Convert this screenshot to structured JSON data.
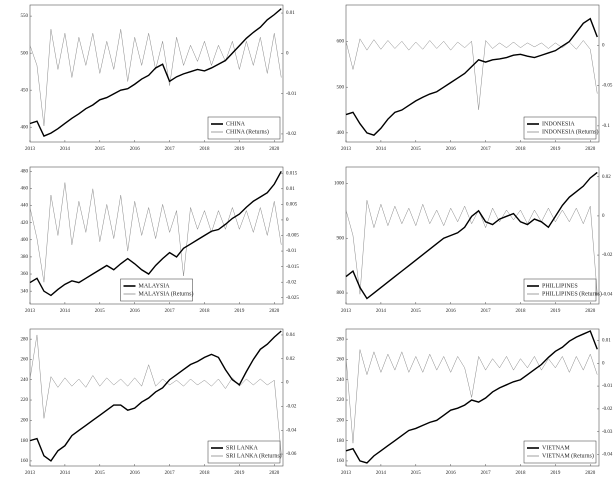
{
  "chart_data": [
    {
      "type": "line",
      "x": [
        2013,
        2013.2,
        2013.4,
        2013.6,
        2013.8,
        2014,
        2014.2,
        2014.4,
        2014.6,
        2014.8,
        2015,
        2015.2,
        2015.4,
        2015.6,
        2015.8,
        2016,
        2016.2,
        2016.4,
        2016.6,
        2016.8,
        2017,
        2017.2,
        2017.4,
        2017.6,
        2017.8,
        2018,
        2018.2,
        2018.4,
        2018.6,
        2018.8,
        2019,
        2019.2,
        2019.4,
        2019.6,
        2019.8,
        2020,
        2020.2
      ],
      "xlim": [
        2013,
        2020.25
      ],
      "xticks": [
        2013,
        2014,
        2015,
        2016,
        2017,
        2018,
        2019,
        2020
      ],
      "ylim": [
        380,
        565
      ],
      "yticks": [
        400,
        450,
        500,
        550
      ],
      "y2lim": [
        -0.022,
        0.012
      ],
      "y2ticks": [
        -0.02,
        -0.01,
        0,
        0.01
      ],
      "legend": "lower right",
      "series": [
        {
          "name": "CHINA",
          "color": "#000000",
          "values": [
            405,
            408,
            388,
            392,
            398,
            405,
            412,
            418,
            425,
            430,
            437,
            440,
            445,
            450,
            452,
            458,
            465,
            470,
            480,
            485,
            462,
            468,
            472,
            475,
            478,
            476,
            480,
            485,
            490,
            500,
            510,
            520,
            528,
            535,
            545,
            552,
            560
          ]
        },
        {
          "name": "CHINA (Returns)",
          "color": "#8a8a8a",
          "axis": "y2",
          "values": [
            0.002,
            -0.003,
            -0.018,
            0.006,
            -0.004,
            0.005,
            -0.006,
            0.004,
            -0.003,
            0.005,
            -0.005,
            0.003,
            -0.004,
            0.006,
            -0.007,
            0.004,
            -0.003,
            0.005,
            -0.004,
            0.003,
            -0.008,
            0.004,
            -0.003,
            0.002,
            -0.002,
            0.003,
            -0.003,
            0.002,
            -0.002,
            0.003,
            -0.004,
            0.003,
            -0.003,
            0.004,
            -0.005,
            0.005,
            -0.006
          ]
        }
      ]
    },
    {
      "type": "line",
      "x": [
        2013,
        2013.2,
        2013.4,
        2013.6,
        2013.8,
        2014,
        2014.2,
        2014.4,
        2014.6,
        2014.8,
        2015,
        2015.2,
        2015.4,
        2015.6,
        2015.8,
        2016,
        2016.2,
        2016.4,
        2016.6,
        2016.8,
        2017,
        2017.2,
        2017.4,
        2017.6,
        2017.8,
        2018,
        2018.2,
        2018.4,
        2018.6,
        2018.8,
        2019,
        2019.2,
        2019.4,
        2019.6,
        2019.8,
        2020,
        2020.2
      ],
      "xlim": [
        2013,
        2020.25
      ],
      "xticks": [
        2013,
        2014,
        2015,
        2016,
        2017,
        2018,
        2019,
        2020
      ],
      "ylim": [
        380,
        680
      ],
      "yticks": [
        400,
        500,
        600
      ],
      "y2lim": [
        -0.12,
        0.05
      ],
      "y2ticks": [
        -0.1,
        -0.05,
        0
      ],
      "legend": "lower right",
      "series": [
        {
          "name": "INDONESIA",
          "color": "#000000",
          "values": [
            440,
            445,
            420,
            400,
            395,
            410,
            430,
            445,
            450,
            460,
            470,
            478,
            485,
            490,
            500,
            510,
            520,
            530,
            545,
            560,
            555,
            560,
            562,
            565,
            570,
            572,
            568,
            565,
            570,
            575,
            580,
            590,
            600,
            620,
            640,
            650,
            610
          ]
        },
        {
          "name": "INDONESIA (Returns)",
          "color": "#8a8a8a",
          "axis": "y2",
          "values": [
            0.005,
            -0.03,
            0.008,
            -0.006,
            0.007,
            -0.005,
            0.006,
            -0.004,
            0.005,
            -0.006,
            0.004,
            -0.005,
            0.006,
            -0.004,
            0.005,
            -0.006,
            0.004,
            -0.003,
            0.005,
            -0.08,
            0.006,
            -0.004,
            0.003,
            -0.003,
            0.004,
            -0.003,
            0.003,
            -0.002,
            0.003,
            -0.004,
            0.003,
            -0.003,
            0.004,
            -0.005,
            0.006,
            -0.005,
            -0.06
          ]
        }
      ]
    },
    {
      "type": "line",
      "x": [
        2013,
        2013.2,
        2013.4,
        2013.6,
        2013.8,
        2014,
        2014.2,
        2014.4,
        2014.6,
        2014.8,
        2015,
        2015.2,
        2015.4,
        2015.6,
        2015.8,
        2016,
        2016.2,
        2016.4,
        2016.6,
        2016.8,
        2017,
        2017.2,
        2017.4,
        2017.6,
        2017.8,
        2018,
        2018.2,
        2018.4,
        2018.6,
        2018.8,
        2019,
        2019.2,
        2019.4,
        2019.6,
        2019.8,
        2020,
        2020.2
      ],
      "xlim": [
        2013,
        2020.25
      ],
      "xticks": [
        2013,
        2014,
        2015,
        2016,
        2017,
        2018,
        2019,
        2020
      ],
      "ylim": [
        325,
        485
      ],
      "yticks": [
        340,
        360,
        380,
        400,
        420,
        440,
        460,
        480
      ],
      "y2lim": [
        -0.027,
        0.017
      ],
      "y2ticks": [
        -0.025,
        -0.02,
        -0.015,
        -0.01,
        -0.005,
        0,
        0.005,
        0.01,
        0.015
      ],
      "legend": "lower center",
      "series": [
        {
          "name": "MALAYSIA",
          "color": "#000000",
          "values": [
            350,
            355,
            340,
            335,
            342,
            348,
            352,
            350,
            355,
            360,
            365,
            370,
            365,
            372,
            378,
            372,
            365,
            360,
            370,
            378,
            385,
            380,
            390,
            395,
            400,
            405,
            410,
            412,
            418,
            425,
            430,
            438,
            445,
            450,
            455,
            465,
            480
          ]
        },
        {
          "name": "MALAYSIA (Returns)",
          "color": "#8a8a8a",
          "axis": "y2",
          "values": [
            0.004,
            -0.006,
            -0.02,
            0.008,
            -0.005,
            0.012,
            -0.008,
            0.006,
            -0.004,
            0.01,
            -0.007,
            0.005,
            -0.006,
            0.008,
            -0.01,
            0.006,
            -0.005,
            0.004,
            -0.006,
            0.005,
            -0.004,
            0.003,
            -0.018,
            0.004,
            -0.003,
            0.003,
            -0.004,
            0.003,
            -0.003,
            0.004,
            -0.003,
            0.003,
            -0.004,
            0.004,
            -0.005,
            0.006,
            -0.008
          ]
        }
      ]
    },
    {
      "type": "line",
      "x": [
        2013,
        2013.2,
        2013.4,
        2013.6,
        2013.8,
        2014,
        2014.2,
        2014.4,
        2014.6,
        2014.8,
        2015,
        2015.2,
        2015.4,
        2015.6,
        2015.8,
        2016,
        2016.2,
        2016.4,
        2016.6,
        2016.8,
        2017,
        2017.2,
        2017.4,
        2017.6,
        2017.8,
        2018,
        2018.2,
        2018.4,
        2018.6,
        2018.8,
        2019,
        2019.2,
        2019.4,
        2019.6,
        2019.8,
        2020,
        2020.2
      ],
      "xlim": [
        2013,
        2020.25
      ],
      "xticks": [
        2013,
        2014,
        2015,
        2016,
        2017,
        2018,
        2019,
        2020
      ],
      "ylim": [
        780,
        1030
      ],
      "yticks": [
        800,
        900,
        1000
      ],
      "y2lim": [
        -0.045,
        0.025
      ],
      "y2ticks": [
        -0.04,
        -0.02,
        0,
        0.02
      ],
      "legend": "lower right",
      "series": [
        {
          "name": "PHILLIPINES",
          "color": "#000000",
          "values": [
            830,
            840,
            810,
            790,
            800,
            810,
            820,
            830,
            840,
            850,
            860,
            870,
            880,
            890,
            900,
            905,
            910,
            920,
            940,
            950,
            930,
            925,
            935,
            940,
            945,
            930,
            925,
            935,
            930,
            920,
            940,
            960,
            975,
            985,
            995,
            1010,
            1020
          ]
        },
        {
          "name": "PHILLIPINES (Returns)",
          "color": "#8a8a8a",
          "axis": "y2",
          "values": [
            0.003,
            -0.01,
            -0.04,
            0.008,
            -0.006,
            0.006,
            -0.005,
            0.005,
            -0.004,
            0.004,
            -0.005,
            0.006,
            -0.004,
            0.003,
            -0.005,
            0.004,
            -0.003,
            0.005,
            -0.004,
            0.003,
            -0.006,
            0.004,
            -0.003,
            0.003,
            -0.002,
            0.003,
            -0.004,
            0.003,
            -0.003,
            0.004,
            -0.003,
            0.003,
            -0.003,
            0.004,
            -0.004,
            0.005,
            -0.04
          ]
        }
      ]
    },
    {
      "type": "line",
      "x": [
        2013,
        2013.2,
        2013.4,
        2013.6,
        2013.8,
        2014,
        2014.2,
        2014.4,
        2014.6,
        2014.8,
        2015,
        2015.2,
        2015.4,
        2015.6,
        2015.8,
        2016,
        2016.2,
        2016.4,
        2016.6,
        2016.8,
        2017,
        2017.2,
        2017.4,
        2017.6,
        2017.8,
        2018,
        2018.2,
        2018.4,
        2018.6,
        2018.8,
        2019,
        2019.2,
        2019.4,
        2019.6,
        2019.8,
        2020,
        2020.2
      ],
      "xlim": [
        2013,
        2020.25
      ],
      "xticks": [
        2013,
        2014,
        2015,
        2016,
        2017,
        2018,
        2019,
        2020
      ],
      "ylim": [
        155,
        290
      ],
      "yticks": [
        160,
        180,
        200,
        220,
        240,
        260,
        280
      ],
      "y2lim": [
        -0.07,
        0.045
      ],
      "y2ticks": [
        -0.06,
        -0.04,
        -0.02,
        0,
        0.02,
        0.04
      ],
      "legend": "lower right",
      "series": [
        {
          "name": "SRI LANKA",
          "color": "#000000",
          "values": [
            180,
            182,
            165,
            160,
            170,
            175,
            185,
            190,
            195,
            200,
            205,
            210,
            215,
            215,
            210,
            212,
            218,
            222,
            228,
            232,
            240,
            245,
            250,
            255,
            258,
            262,
            265,
            262,
            250,
            240,
            235,
            248,
            260,
            270,
            275,
            282,
            288
          ]
        },
        {
          "name": "SRI LANKA (Returns)",
          "color": "#8a8a8a",
          "axis": "y2",
          "values": [
            0.003,
            0.04,
            -0.03,
            0.005,
            -0.004,
            0.004,
            -0.003,
            0.003,
            -0.004,
            0.006,
            -0.003,
            0.004,
            -0.002,
            0.003,
            -0.003,
            0.004,
            -0.003,
            0.015,
            -0.003,
            0.003,
            -0.002,
            0.002,
            -0.003,
            0.003,
            -0.002,
            0.002,
            -0.003,
            0.003,
            -0.005,
            0.004,
            -0.003,
            0.003,
            -0.002,
            0.003,
            -0.002,
            0.002,
            -0.06
          ]
        }
      ]
    },
    {
      "type": "line",
      "x": [
        2013,
        2013.2,
        2013.4,
        2013.6,
        2013.8,
        2014,
        2014.2,
        2014.4,
        2014.6,
        2014.8,
        2015,
        2015.2,
        2015.4,
        2015.6,
        2015.8,
        2016,
        2016.2,
        2016.4,
        2016.6,
        2016.8,
        2017,
        2017.2,
        2017.4,
        2017.6,
        2017.8,
        2018,
        2018.2,
        2018.4,
        2018.6,
        2018.8,
        2019,
        2019.2,
        2019.4,
        2019.6,
        2019.8,
        2020,
        2020.2
      ],
      "xlim": [
        2013,
        2020.25
      ],
      "xticks": [
        2013,
        2014,
        2015,
        2016,
        2017,
        2018,
        2019,
        2020
      ],
      "ylim": [
        155,
        290
      ],
      "yticks": [
        160,
        180,
        200,
        220,
        240,
        260,
        280
      ],
      "y2lim": [
        -0.045,
        0.015
      ],
      "y2ticks": [
        -0.04,
        -0.03,
        -0.02,
        -0.01,
        0,
        0.01
      ],
      "legend": "lower right",
      "series": [
        {
          "name": "VIETNAM",
          "color": "#000000",
          "values": [
            170,
            172,
            160,
            158,
            165,
            170,
            175,
            180,
            185,
            190,
            192,
            195,
            198,
            200,
            205,
            210,
            212,
            215,
            220,
            218,
            222,
            228,
            232,
            235,
            238,
            240,
            245,
            250,
            255,
            262,
            268,
            272,
            278,
            282,
            285,
            288,
            270
          ]
        },
        {
          "name": "VIETNAM (Returns)",
          "color": "#8a8a8a",
          "axis": "y2",
          "values": [
            0.003,
            -0.035,
            0.006,
            -0.005,
            0.005,
            -0.004,
            0.004,
            -0.003,
            0.005,
            -0.004,
            0.003,
            -0.004,
            0.004,
            -0.003,
            0.003,
            -0.004,
            0.003,
            -0.002,
            -0.015,
            0.003,
            -0.003,
            0.002,
            -0.002,
            0.003,
            -0.003,
            0.002,
            -0.002,
            0.003,
            -0.003,
            0.002,
            -0.002,
            0.003,
            -0.004,
            0.003,
            -0.003,
            0.004,
            -0.005
          ]
        }
      ]
    }
  ]
}
